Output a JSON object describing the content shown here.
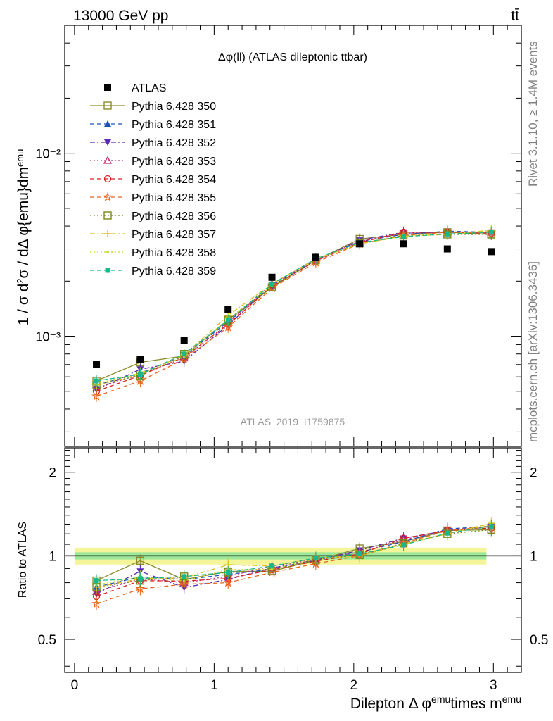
{
  "header": {
    "energy_label": "13000 GeV pp",
    "process_label": "tt̄"
  },
  "side_labels": {
    "rivet": "Rivet 3.1.10, ≥ 1.4M events",
    "mcplots": "mcplots.cern.ch [arXiv:1306.3436]"
  },
  "watermark": "ATLAS_2019_I1759875",
  "chart_data": [
    {
      "type": "scatter",
      "panel": "main",
      "title": "Δφ(ll) (ATLAS dileptonic ttbar)",
      "ylabel": "1 / σ  d²σ / dΔ φ{emu}dm^emu",
      "yscale": "log",
      "ylim": [
        0.00025,
        0.05
      ],
      "xlim": [
        -0.07,
        3.2
      ],
      "y_major_ticks": [
        {
          "value": 0.001,
          "label": "10⁻³"
        },
        {
          "value": 0.01,
          "label": "10⁻²"
        }
      ],
      "x": [
        0.157,
        0.471,
        0.785,
        1.1,
        1.414,
        1.728,
        2.042,
        2.356,
        2.67,
        2.985
      ],
      "legend_position": "top-left",
      "data": {
        "name": "ATLAS",
        "color": "#000000",
        "marker": "square-filled",
        "values": [
          0.0007,
          0.00075,
          0.00095,
          0.0014,
          0.0021,
          0.0027,
          0.0032,
          0.0032,
          0.003,
          0.0029
        ]
      },
      "series": [
        {
          "name": "Pythia 6.428 350",
          "color": "#8c8c2c",
          "marker": "square-open",
          "dash": "solid",
          "values": [
            0.00057,
            0.00072,
            0.00078,
            0.00123,
            0.00185,
            0.0026,
            0.0034,
            0.0036,
            0.0037,
            0.0036
          ]
        },
        {
          "name": "Pythia 6.428 351",
          "color": "#1f4fbf",
          "marker": "triangle-up-filled",
          "dash": "dash",
          "values": [
            0.00054,
            0.00063,
            0.00078,
            0.0012,
            0.00188,
            0.00262,
            0.0033,
            0.0036,
            0.00375,
            0.0037
          ]
        },
        {
          "name": "Pythia 6.428 352",
          "color": "#5a2ab5",
          "marker": "triangle-down-filled",
          "dash": "dashdot",
          "values": [
            0.00051,
            0.00066,
            0.00073,
            0.00115,
            0.0019,
            0.0026,
            0.00335,
            0.0037,
            0.0037,
            0.0037
          ]
        },
        {
          "name": "Pythia 6.428 353",
          "color": "#c03070",
          "marker": "triangle-up-open",
          "dash": "dot",
          "values": [
            0.00052,
            0.00062,
            0.00076,
            0.00118,
            0.00193,
            0.00262,
            0.0033,
            0.00365,
            0.00372,
            0.0037
          ]
        },
        {
          "name": "Pythia 6.428 354",
          "color": "#d62020",
          "marker": "circle-open",
          "dash": "dash",
          "values": [
            0.0005,
            0.00061,
            0.00077,
            0.00116,
            0.00187,
            0.00258,
            0.00325,
            0.0037,
            0.0037,
            0.00365
          ]
        },
        {
          "name": "Pythia 6.428 355",
          "color": "#e8641e",
          "marker": "star-open",
          "dash": "dash",
          "values": [
            0.00047,
            0.00057,
            0.00075,
            0.00112,
            0.00183,
            0.00253,
            0.0032,
            0.00355,
            0.0037,
            0.0037
          ]
        },
        {
          "name": "Pythia 6.428 356",
          "color": "#7a8a1a",
          "marker": "square-open",
          "dash": "dot",
          "values": [
            0.00054,
            0.00061,
            0.0008,
            0.00122,
            0.00185,
            0.00262,
            0.00322,
            0.00355,
            0.0036,
            0.0036
          ]
        },
        {
          "name": "Pythia 6.428 357",
          "color": "#d8c020",
          "marker": "cross",
          "dash": "dashdot",
          "values": [
            0.00054,
            0.00062,
            0.00079,
            0.0013,
            0.00193,
            0.00265,
            0.0032,
            0.00352,
            0.0036,
            0.0038
          ]
        },
        {
          "name": "Pythia 6.428 358",
          "color": "#c8d820",
          "marker": "dot",
          "dash": "dot",
          "values": [
            0.00055,
            0.00063,
            0.00077,
            0.00125,
            0.00188,
            0.00262,
            0.0032,
            0.00352,
            0.00362,
            0.00375
          ]
        },
        {
          "name": "Pythia 6.428 359",
          "color": "#18b888",
          "marker": "square-filled-small",
          "dash": "dash",
          "values": [
            0.00057,
            0.00062,
            0.0008,
            0.00122,
            0.00193,
            0.00265,
            0.00325,
            0.0035,
            0.00362,
            0.0037
          ]
        }
      ]
    },
    {
      "type": "line",
      "panel": "ratio",
      "ylabel": "Ratio to ATLAS",
      "xlabel": "Dilepton Δ φ^emu times m^emu",
      "ylim": [
        0.38,
        2.45
      ],
      "xlim": [
        -0.07,
        3.2
      ],
      "y_ticks": [
        {
          "value": 0.5,
          "label": "0.5"
        },
        {
          "value": 1,
          "label": "1"
        },
        {
          "value": 2,
          "label": "2"
        }
      ],
      "x_ticks": [
        {
          "value": 0,
          "label": "0"
        },
        {
          "value": 1,
          "label": "1"
        },
        {
          "value": 2,
          "label": "2"
        },
        {
          "value": 3,
          "label": "3"
        }
      ],
      "reference_line": 1,
      "uncertainty_band": {
        "stat": 0.03,
        "total": 0.07
      },
      "note": "ratio values = series / ATLAS data"
    }
  ]
}
